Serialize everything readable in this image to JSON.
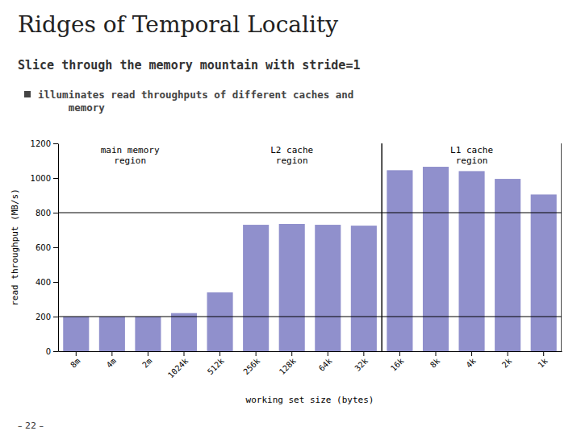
{
  "chart_data": {
    "type": "bar",
    "title": "Ridges of Temporal Locality",
    "subtitle": "Slice through the memory mountain with stride=1",
    "bullet": "illuminates read throughputs of different caches and\n     memory",
    "footer": "– 22 –",
    "categories": [
      "8m",
      "4m",
      "2m",
      "1024k",
      "512k",
      "256k",
      "128k",
      "64k",
      "32k",
      "16k",
      "8k",
      "4k",
      "2k",
      "1k"
    ],
    "values": [
      200,
      200,
      200,
      220,
      340,
      730,
      735,
      730,
      725,
      1045,
      1065,
      1040,
      995,
      905
    ],
    "color": "#9090cc",
    "ylabel": "read throughput (MB/s)",
    "xlabel": "working set size (bytes)",
    "ylim": [
      0,
      1200
    ],
    "yticks": [
      0,
      200,
      400,
      600,
      800,
      1000,
      1200
    ],
    "reference_lines": [
      200,
      800
    ],
    "dividers": [
      "32k",
      "1k"
    ],
    "regions": [
      {
        "label": "main memory\nregion",
        "first": "8m",
        "last": "1024k"
      },
      {
        "label": "L2 cache\nregion",
        "first": "512k",
        "last": "32k"
      },
      {
        "label": "L1 cache\nregion",
        "first": "16k",
        "last": "1k"
      }
    ]
  }
}
